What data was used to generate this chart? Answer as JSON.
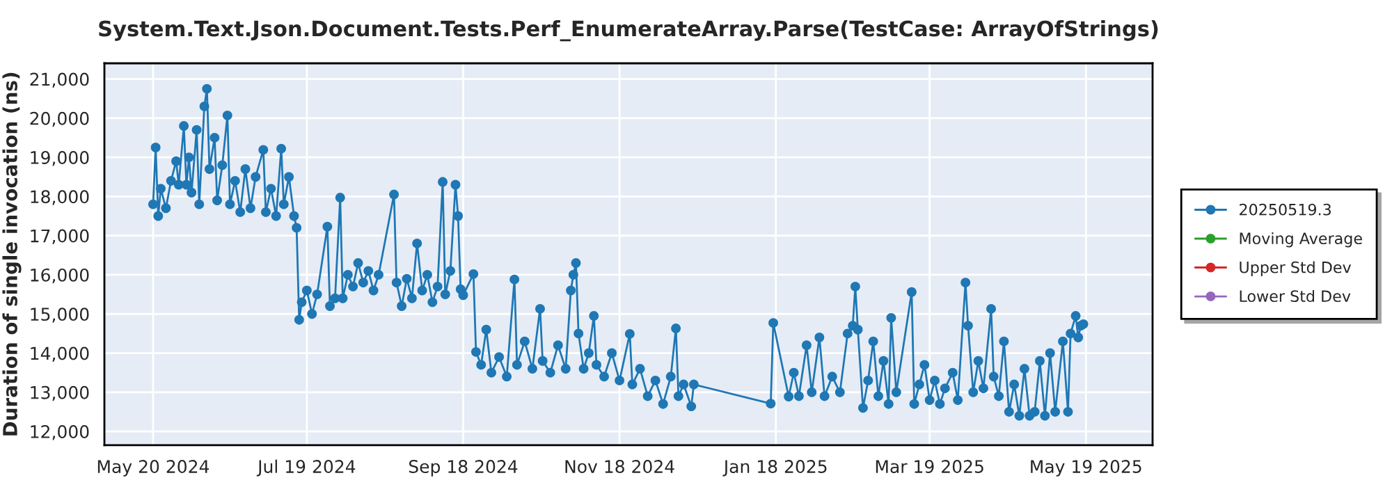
{
  "chart_data": {
    "type": "line",
    "title": "System.Text.Json.Document.Tests.Perf_EnumerateArray.Parse(TestCase: ArrayOfStrings)",
    "ylabel": "Duration of single invocation (ns)",
    "x": [
      "2024-05-20",
      "2024-05-21",
      "2024-05-22",
      "2024-05-23",
      "2024-05-25",
      "2024-05-27",
      "2024-05-29",
      "2024-05-30",
      "2024-06-01",
      "2024-06-02",
      "2024-06-03",
      "2024-06-04",
      "2024-06-06",
      "2024-06-07",
      "2024-06-09",
      "2024-06-10",
      "2024-06-11",
      "2024-06-13",
      "2024-06-14",
      "2024-06-16",
      "2024-06-18",
      "2024-06-19",
      "2024-06-21",
      "2024-06-23",
      "2024-06-25",
      "2024-06-27",
      "2024-06-29",
      "2024-07-02",
      "2024-07-03",
      "2024-07-05",
      "2024-07-07",
      "2024-07-09",
      "2024-07-10",
      "2024-07-12",
      "2024-07-14",
      "2024-07-15",
      "2024-07-16",
      "2024-07-17",
      "2024-07-19",
      "2024-07-21",
      "2024-07-23",
      "2024-07-27",
      "2024-07-28",
      "2024-07-30",
      "2024-08-01",
      "2024-08-02",
      "2024-08-04",
      "2024-08-06",
      "2024-08-08",
      "2024-08-10",
      "2024-08-12",
      "2024-08-14",
      "2024-08-16",
      "2024-08-22",
      "2024-08-23",
      "2024-08-25",
      "2024-08-27",
      "2024-08-29",
      "2024-08-31",
      "2024-09-02",
      "2024-09-04",
      "2024-09-06",
      "2024-09-08",
      "2024-09-10",
      "2024-09-11",
      "2024-09-13",
      "2024-09-15",
      "2024-09-16",
      "2024-09-17",
      "2024-09-18",
      "2024-09-22",
      "2024-09-23",
      "2024-09-25",
      "2024-09-27",
      "2024-09-29",
      "2024-10-02",
      "2024-10-05",
      "2024-10-08",
      "2024-10-09",
      "2024-10-12",
      "2024-10-15",
      "2024-10-18",
      "2024-10-19",
      "2024-10-22",
      "2024-10-25",
      "2024-10-28",
      "2024-10-30",
      "2024-10-31",
      "2024-11-01",
      "2024-11-02",
      "2024-11-04",
      "2024-11-06",
      "2024-11-08",
      "2024-11-09",
      "2024-11-12",
      "2024-11-15",
      "2024-11-18",
      "2024-11-22",
      "2024-11-23",
      "2024-11-26",
      "2024-11-29",
      "2024-12-02",
      "2024-12-05",
      "2024-12-08",
      "2024-12-10",
      "2024-12-11",
      "2024-12-13",
      "2024-12-16",
      "2024-12-17",
      "2025-01-16",
      "2025-01-17",
      "2025-01-23",
      "2025-01-25",
      "2025-01-27",
      "2025-01-30",
      "2025-02-01",
      "2025-02-04",
      "2025-02-06",
      "2025-02-09",
      "2025-02-12",
      "2025-02-15",
      "2025-02-17",
      "2025-02-18",
      "2025-02-19",
      "2025-02-21",
      "2025-02-23",
      "2025-02-25",
      "2025-02-27",
      "2025-03-01",
      "2025-03-03",
      "2025-03-04",
      "2025-03-06",
      "2025-03-12",
      "2025-03-13",
      "2025-03-15",
      "2025-03-17",
      "2025-03-19",
      "2025-03-21",
      "2025-03-23",
      "2025-03-25",
      "2025-03-28",
      "2025-03-30",
      "2025-04-02",
      "2025-04-03",
      "2025-04-05",
      "2025-04-07",
      "2025-04-09",
      "2025-04-12",
      "2025-04-13",
      "2025-04-15",
      "2025-04-17",
      "2025-04-19",
      "2025-04-21",
      "2025-04-23",
      "2025-04-25",
      "2025-04-27",
      "2025-04-29",
      "2025-05-01",
      "2025-05-03",
      "2025-05-05",
      "2025-05-07",
      "2025-05-10",
      "2025-05-12",
      "2025-05-13",
      "2025-05-15",
      "2025-05-16",
      "2025-05-17",
      "2025-05-18"
    ],
    "series": [
      {
        "name": "20250519.3",
        "color": "#1f77b4",
        "values": [
          17800,
          19250,
          17500,
          18200,
          17700,
          18400,
          18900,
          18300,
          19800,
          18300,
          19000,
          18100,
          19700,
          17800,
          20300,
          20750,
          18700,
          19500,
          17900,
          18800,
          20070,
          17800,
          18400,
          17600,
          18700,
          17700,
          18500,
          19190,
          17600,
          18200,
          17500,
          19220,
          17800,
          18500,
          17500,
          17200,
          14850,
          15300,
          15600,
          15000,
          15500,
          17230,
          15200,
          15400,
          17970,
          15400,
          16000,
          15700,
          16300,
          15800,
          16100,
          15600,
          16000,
          18050,
          15800,
          15200,
          15900,
          15400,
          16800,
          15600,
          16000,
          15300,
          15700,
          18370,
          15500,
          16100,
          18300,
          17500,
          15630,
          15480,
          16020,
          14030,
          13700,
          14600,
          13500,
          13900,
          13400,
          15880,
          13700,
          14300,
          13600,
          15130,
          13800,
          13500,
          14200,
          13600,
          15600,
          16000,
          16300,
          14500,
          13600,
          14000,
          14950,
          13700,
          13400,
          14000,
          13300,
          14490,
          13200,
          13600,
          12900,
          13300,
          12700,
          13400,
          14630,
          12900,
          13200,
          12640,
          13200,
          12710,
          14770,
          12890,
          13500,
          12900,
          14200,
          13000,
          14400,
          12900,
          13400,
          13000,
          14500,
          14700,
          15700,
          14600,
          12600,
          13300,
          14300,
          12900,
          13800,
          12700,
          14900,
          13000,
          15560,
          12700,
          13200,
          13700,
          12800,
          13300,
          12700,
          13100,
          13500,
          12800,
          15800,
          14700,
          13000,
          13800,
          13100,
          15130,
          13400,
          12900,
          14300,
          12500,
          13200,
          12400,
          13600,
          12400,
          12500,
          13800,
          12400,
          14000,
          12500,
          14300,
          12500,
          14500,
          14950,
          14400,
          14700,
          14740
        ]
      },
      {
        "name": "Moving Average",
        "color": "#2ca02c",
        "values": [
          null,
          null,
          null,
          null,
          null,
          null,
          null,
          null,
          null,
          null,
          null,
          null,
          null,
          null,
          null,
          null,
          null,
          null,
          null,
          null,
          null,
          null,
          null,
          null,
          null,
          null,
          null,
          null,
          null,
          null,
          null,
          null,
          null,
          null,
          null,
          null,
          null,
          null,
          null,
          null,
          null,
          null,
          null,
          null,
          null,
          null,
          null,
          null,
          null,
          null,
          null,
          null,
          null,
          null,
          null,
          null,
          null,
          null,
          null,
          null,
          null,
          null,
          null,
          null,
          null,
          null,
          null,
          null,
          null,
          null,
          null,
          null,
          null,
          null,
          null,
          null,
          null,
          null,
          null,
          null,
          null,
          null,
          null,
          null,
          null,
          null,
          null,
          null,
          null,
          null,
          null,
          null,
          null,
          null,
          null,
          null,
          null,
          null,
          null,
          null,
          null,
          null,
          null,
          null,
          null,
          null,
          null,
          null,
          null,
          null,
          null,
          null,
          null,
          null,
          null,
          null,
          null,
          null,
          null,
          null,
          null,
          null,
          null,
          null,
          null,
          null,
          null,
          null,
          null,
          null,
          null,
          null,
          null,
          null,
          null,
          null,
          null,
          null,
          null,
          null,
          null,
          null,
          null,
          null,
          null,
          null,
          null,
          null,
          null,
          null,
          null,
          null,
          null,
          null,
          null,
          null,
          null,
          null,
          null,
          null,
          null,
          null,
          null,
          null,
          null,
          null,
          null,
          null
        ]
      },
      {
        "name": "Upper Std Dev",
        "color": "#d62728",
        "values": [
          null,
          null,
          null,
          null,
          null,
          null,
          null,
          null,
          null,
          null,
          null,
          null,
          null,
          null,
          null,
          null,
          null,
          null,
          null,
          null,
          null,
          null,
          null,
          null,
          null,
          null,
          null,
          null,
          null,
          null,
          null,
          null,
          null,
          null,
          null,
          null,
          null,
          null,
          null,
          null,
          null,
          null,
          null,
          null,
          null,
          null,
          null,
          null,
          null,
          null,
          null,
          null,
          null,
          null,
          null,
          null,
          null,
          null,
          null,
          null,
          null,
          null,
          null,
          null,
          null,
          null,
          null,
          null,
          null,
          null,
          null,
          null,
          null,
          null,
          null,
          null,
          null,
          null,
          null,
          null,
          null,
          null,
          null,
          null,
          null,
          null,
          null,
          null,
          null,
          null,
          null,
          null,
          null,
          null,
          null,
          null,
          null,
          null,
          null,
          null,
          null,
          null,
          null,
          null,
          null,
          null,
          null,
          null,
          null,
          null,
          null,
          null,
          null,
          null,
          null,
          null,
          null,
          null,
          null,
          null,
          null,
          null,
          null,
          null,
          null,
          null,
          null,
          null,
          null,
          null,
          null,
          null,
          null,
          null,
          null,
          null,
          null,
          null,
          null,
          null,
          null,
          null,
          null,
          null,
          null,
          null,
          null,
          null,
          null,
          null,
          null,
          null,
          null,
          null,
          null,
          null,
          null,
          null,
          null,
          null,
          null,
          null,
          null,
          null,
          null,
          null,
          null,
          null
        ]
      },
      {
        "name": "Lower Std Dev",
        "color": "#9467bd",
        "values": [
          null,
          null,
          null,
          null,
          null,
          null,
          null,
          null,
          null,
          null,
          null,
          null,
          null,
          null,
          null,
          null,
          null,
          null,
          null,
          null,
          null,
          null,
          null,
          null,
          null,
          null,
          null,
          null,
          null,
          null,
          null,
          null,
          null,
          null,
          null,
          null,
          null,
          null,
          null,
          null,
          null,
          null,
          null,
          null,
          null,
          null,
          null,
          null,
          null,
          null,
          null,
          null,
          null,
          null,
          null,
          null,
          null,
          null,
          null,
          null,
          null,
          null,
          null,
          null,
          null,
          null,
          null,
          null,
          null,
          null,
          null,
          null,
          null,
          null,
          null,
          null,
          null,
          null,
          null,
          null,
          null,
          null,
          null,
          null,
          null,
          null,
          null,
          null,
          null,
          null,
          null,
          null,
          null,
          null,
          null,
          null,
          null,
          null,
          null,
          null,
          null,
          null,
          null,
          null,
          null,
          null,
          null,
          null,
          null,
          null,
          null,
          null,
          null,
          null,
          null,
          null,
          null,
          null,
          null,
          null,
          null,
          null,
          null,
          null,
          null,
          null,
          null,
          null,
          null,
          null,
          null,
          null,
          null,
          null,
          null,
          null,
          null,
          null,
          null,
          null,
          null,
          null,
          null,
          null,
          null,
          null,
          null,
          null,
          null,
          null,
          null,
          null,
          null,
          null,
          null,
          null,
          null,
          null,
          null,
          null,
          null,
          null,
          null,
          null,
          null,
          null,
          null,
          null
        ]
      }
    ],
    "xlim": [
      "2024-05-01",
      "2025-06-14"
    ],
    "xticks": [
      {
        "value": "2024-05-20",
        "label": "May 20 2024"
      },
      {
        "value": "2024-07-19",
        "label": "Jul 19 2024"
      },
      {
        "value": "2024-09-18",
        "label": "Sep 18 2024"
      },
      {
        "value": "2024-11-18",
        "label": "Nov 18 2024"
      },
      {
        "value": "2025-01-18",
        "label": "Jan 18 2025"
      },
      {
        "value": "2025-03-19",
        "label": "Mar 19 2025"
      },
      {
        "value": "2025-05-19",
        "label": "May 19 2025"
      }
    ],
    "ylim": [
      11650,
      21400
    ],
    "yticks": [
      {
        "value": 12000,
        "label": "12,000"
      },
      {
        "value": 13000,
        "label": "13,000"
      },
      {
        "value": 14000,
        "label": "14,000"
      },
      {
        "value": 15000,
        "label": "15,000"
      },
      {
        "value": 16000,
        "label": "16,000"
      },
      {
        "value": 17000,
        "label": "17,000"
      },
      {
        "value": 18000,
        "label": "18,000"
      },
      {
        "value": 19000,
        "label": "19,000"
      },
      {
        "value": 20000,
        "label": "20,000"
      },
      {
        "value": 21000,
        "label": "21,000"
      }
    ],
    "grid": true,
    "legend": "right",
    "marker": "circle",
    "line_style": "solid"
  }
}
